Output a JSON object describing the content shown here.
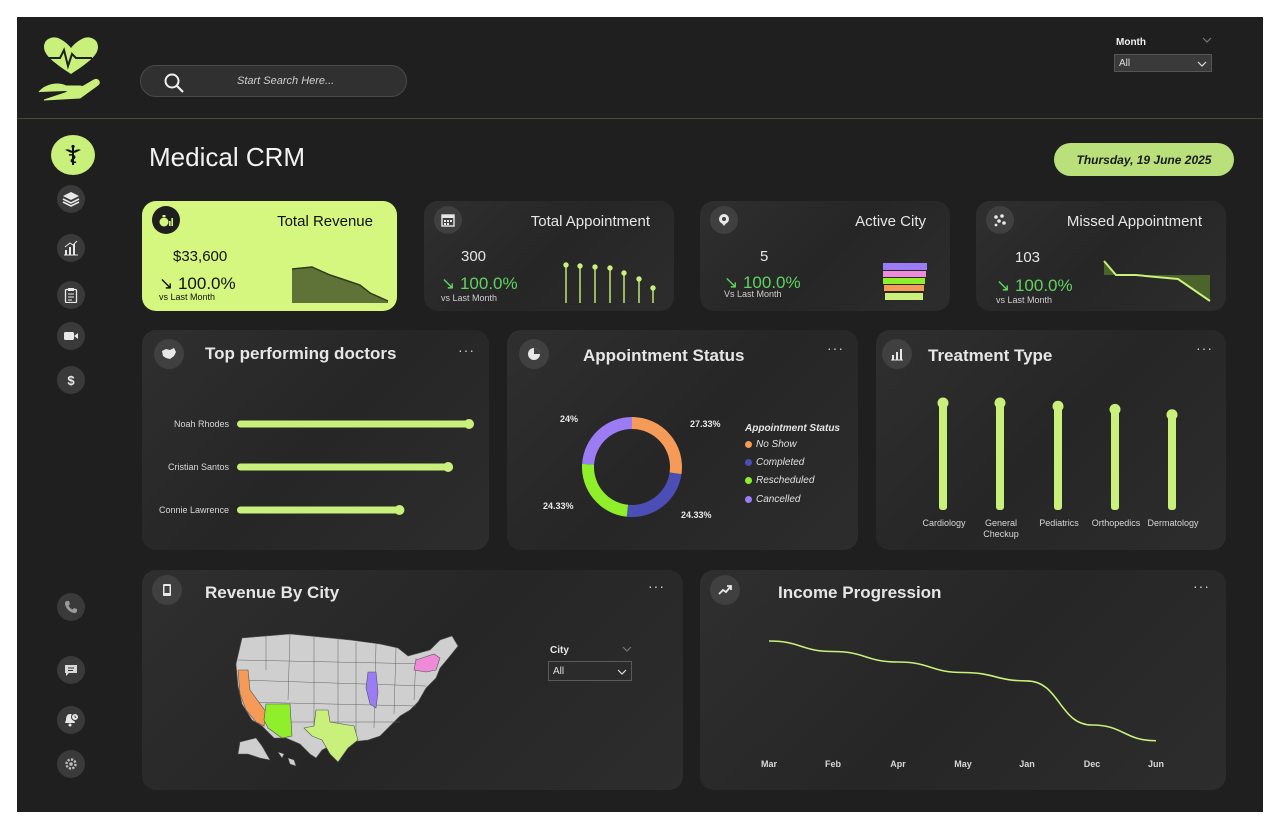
{
  "search": {
    "placeholder": "Start Search Here..."
  },
  "filter": {
    "label": "Month",
    "value": "All"
  },
  "page": {
    "title": "Medical CRM",
    "date": "Thursday, 19 June 2025"
  },
  "sidebar": {
    "items": [
      {
        "name": "caduceus-icon"
      },
      {
        "name": "layers-icon"
      },
      {
        "name": "chart-icon"
      },
      {
        "name": "clipboard-icon"
      },
      {
        "name": "video-icon"
      },
      {
        "name": "dollar-icon"
      },
      {
        "name": "phone-icon"
      },
      {
        "name": "chat-icon"
      },
      {
        "name": "bell-icon"
      },
      {
        "name": "settings-icon"
      }
    ]
  },
  "kpis": [
    {
      "title": "Total Revenue",
      "value": "$33,600",
      "pct": "↘ 100.0%",
      "sub": "vs Last Month"
    },
    {
      "title": "Total Appointment",
      "value": "300",
      "pct": "↘ 100.0%",
      "sub": "vs Last Month"
    },
    {
      "title": "Active City",
      "value": "5",
      "pct": "↘ 100.0%",
      "sub": "Vs Last Month"
    },
    {
      "title": "Missed Appointment",
      "value": "103",
      "pct": "↘ 100.0%",
      "sub": "vs Last Month"
    }
  ],
  "doctors": {
    "title": "Top performing doctors",
    "items": [
      {
        "name": "Noah Rhodes",
        "value": 1.0
      },
      {
        "name": "Cristian Santos",
        "value": 0.91
      },
      {
        "name": "Connie Lawrence",
        "value": 0.7
      }
    ]
  },
  "status": {
    "title": "Appointment Status",
    "legend_title": "Appointment Status",
    "items": [
      {
        "label": "No Show",
        "pct": 27.33,
        "text": "27.33%",
        "color": "#f59a57"
      },
      {
        "label": "Completed",
        "pct": 24.33,
        "text": "24.33%",
        "color": "#4b4fb5"
      },
      {
        "label": "Rescheduled",
        "pct": 24.33,
        "text": "24.33%",
        "color": "#8fef2a"
      },
      {
        "label": "Cancelled",
        "pct": 24,
        "text": "24%",
        "color": "#9b7cf5"
      }
    ]
  },
  "treatment": {
    "title": "Treatment Type",
    "items": [
      {
        "label": "Cardiology",
        "value": 1.0
      },
      {
        "label": "General Checkup",
        "value": 1.0
      },
      {
        "label": "Pediatrics",
        "value": 0.97
      },
      {
        "label": "Orthopedics",
        "value": 0.94
      },
      {
        "label": "Dermatology",
        "value": 0.89
      }
    ]
  },
  "revenue_city": {
    "title": "Revenue By City",
    "filter_label": "City",
    "filter_value": "All"
  },
  "income": {
    "title": "Income Progression",
    "months": [
      "Mar",
      "Feb",
      "Apr",
      "May",
      "Jan",
      "Dec",
      "Jun"
    ],
    "values": [
      1.0,
      0.9,
      0.8,
      0.7,
      0.62,
      0.2,
      0.05
    ]
  },
  "colors": {
    "accent": "#c9f07a",
    "bg": "#1f1f1f",
    "card": "#2a2a2a",
    "positive": "#5fd35f"
  }
}
